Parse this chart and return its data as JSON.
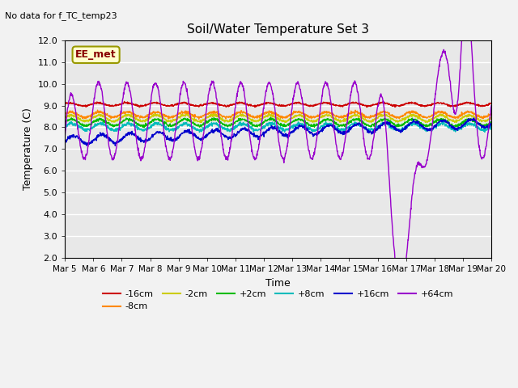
{
  "title": "Soil/Water Temperature Set 3",
  "subtitle": "No data for f_TC_temp23",
  "xlabel": "Time",
  "ylabel": "Temperature (C)",
  "ylim": [
    2.0,
    12.0
  ],
  "yticks": [
    2.0,
    3.0,
    4.0,
    5.0,
    6.0,
    7.0,
    8.0,
    9.0,
    10.0,
    11.0,
    12.0
  ],
  "xtick_labels": [
    "Mar 5",
    "Mar 6",
    "Mar 7",
    "Mar 8",
    "Mar 9",
    "Mar 10",
    "Mar 11",
    "Mar 12",
    "Mar 13",
    "Mar 14",
    "Mar 15",
    "Mar 16",
    "Mar 17",
    "Mar 18",
    "Mar 19",
    "Mar 20"
  ],
  "legend_label": "EE_met",
  "series_labels": [
    "-16cm",
    "-8cm",
    "-2cm",
    "+2cm",
    "+8cm",
    "+16cm",
    "+64cm"
  ],
  "series_colors": [
    "#cc0000",
    "#ff8800",
    "#cccc00",
    "#00bb00",
    "#00bbbb",
    "#0000cc",
    "#9900cc"
  ],
  "figsize": [
    6.4,
    4.8
  ],
  "dpi": 100,
  "n_points": 1500,
  "days": 15
}
